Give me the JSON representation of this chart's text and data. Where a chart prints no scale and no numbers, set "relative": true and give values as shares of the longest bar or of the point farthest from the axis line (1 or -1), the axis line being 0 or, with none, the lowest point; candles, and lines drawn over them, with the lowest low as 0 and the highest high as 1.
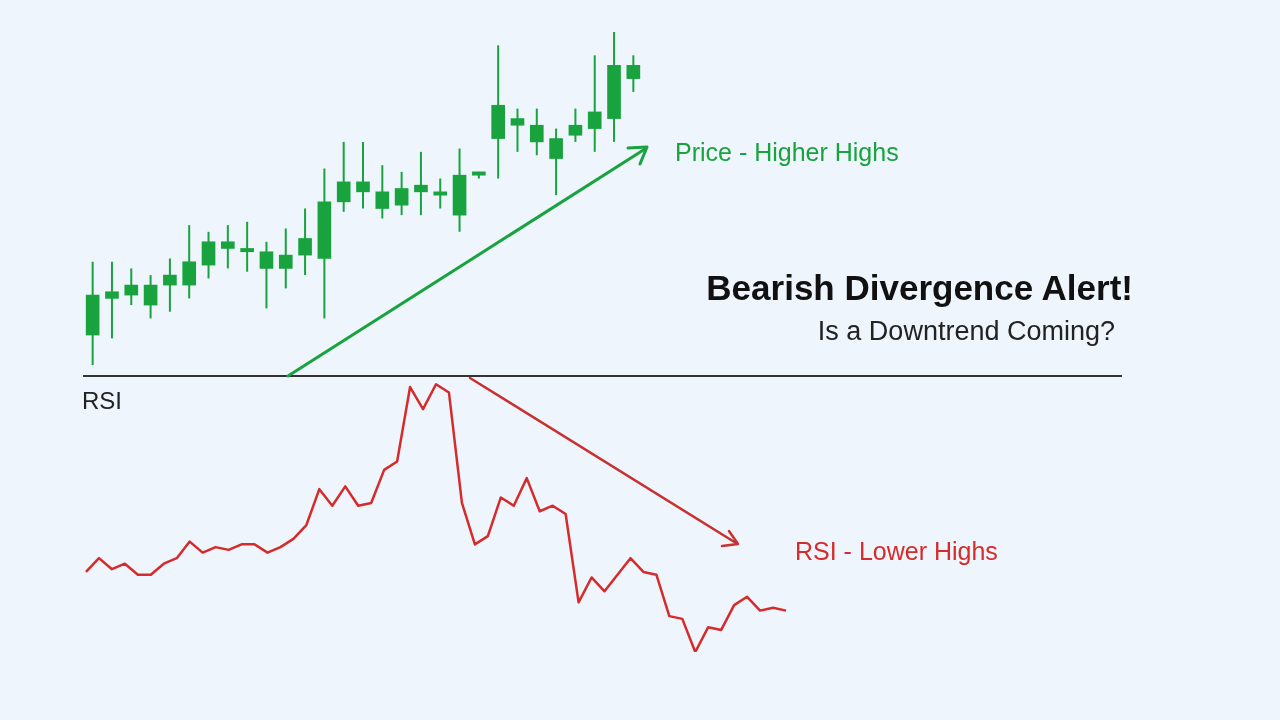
{
  "chart_data": [
    {
      "type": "candlestick",
      "relative": true,
      "annotations": [
        "Price - Higher Highs"
      ],
      "color": "#18a33e",
      "categories": [
        null,
        null,
        null,
        null,
        null,
        null,
        null,
        null,
        null,
        null,
        null,
        null,
        null,
        null,
        null,
        null,
        null,
        null,
        null,
        null,
        null,
        null,
        null,
        null,
        null,
        null,
        null,
        null,
        null
      ],
      "ohlc": [
        [
          0.09,
          0.31,
          0,
          0.21
        ],
        [
          0.2,
          0.31,
          0.08,
          0.22
        ],
        [
          0.21,
          0.29,
          0.18,
          0.24
        ],
        [
          0.18,
          0.27,
          0.14,
          0.24
        ],
        [
          0.24,
          0.32,
          0.16,
          0.27
        ],
        [
          0.24,
          0.42,
          0.2,
          0.31
        ],
        [
          0.3,
          0.4,
          0.26,
          0.37
        ],
        [
          0.35,
          0.42,
          0.29,
          0.37
        ],
        [
          0.34,
          0.43,
          0.28,
          0.35
        ],
        [
          0.29,
          0.37,
          0.17,
          0.34
        ],
        [
          0.29,
          0.41,
          0.23,
          0.33
        ],
        [
          0.33,
          0.47,
          0.27,
          0.38
        ],
        [
          0.32,
          0.59,
          0.14,
          0.49
        ],
        [
          0.49,
          0.67,
          0.46,
          0.55
        ],
        [
          0.52,
          0.67,
          0.47,
          0.55
        ],
        [
          0.47,
          0.6,
          0.44,
          0.52
        ],
        [
          0.48,
          0.58,
          0.45,
          0.53
        ],
        [
          0.52,
          0.64,
          0.45,
          0.54
        ],
        [
          0.51,
          0.56,
          0.47,
          0.52
        ],
        [
          0.45,
          0.65,
          0.4,
          0.57
        ],
        [
          0.57,
          0.58,
          0.56,
          0.58
        ],
        [
          0.68,
          0.96,
          0.56,
          0.78
        ],
        [
          0.72,
          0.77,
          0.64,
          0.74
        ],
        [
          0.67,
          0.77,
          0.63,
          0.72
        ],
        [
          0.62,
          0.71,
          0.51,
          0.68
        ],
        [
          0.69,
          0.77,
          0.67,
          0.72
        ],
        [
          0.71,
          0.93,
          0.64,
          0.76
        ],
        [
          0.74,
          1,
          0.67,
          0.9
        ],
        [
          0.86,
          0.93,
          0.82,
          0.9
        ]
      ]
    },
    {
      "type": "line",
      "relative": true,
      "title": "RSI",
      "annotations": [
        "RSI - Lower Highs"
      ],
      "color": "#d62b2b",
      "categories": [
        null,
        null,
        null,
        null,
        null,
        null,
        null,
        null,
        null,
        null,
        null,
        null,
        null,
        null,
        null,
        null,
        null,
        null,
        null,
        null,
        null,
        null,
        null,
        null,
        null,
        null,
        null,
        null,
        null,
        null,
        null,
        null,
        null,
        null,
        null,
        null,
        null,
        null,
        null,
        null,
        null,
        null,
        null,
        null,
        null,
        null,
        null,
        null,
        null,
        null,
        null,
        null,
        null,
        null,
        null
      ],
      "values": [
        -0.71,
        -0.66,
        -0.7,
        -0.68,
        -0.72,
        -0.72,
        -0.68,
        -0.66,
        -0.6,
        -0.64,
        -0.62,
        -0.63,
        -0.61,
        -0.61,
        -0.64,
        -0.62,
        -0.59,
        -0.54,
        -0.41,
        -0.47,
        -0.4,
        -0.47,
        -0.46,
        -0.34,
        -0.31,
        -0.04,
        -0.12,
        -0.03,
        -0.06,
        -0.46,
        -0.61,
        -0.58,
        -0.44,
        -0.47,
        -0.37,
        -0.49,
        -0.47,
        -0.5,
        -0.82,
        -0.73,
        -0.78,
        -0.72,
        -0.66,
        -0.71,
        -0.72,
        -0.87,
        -0.88,
        -1,
        -0.91,
        -0.92,
        -0.83,
        -0.8,
        -0.85,
        -0.84,
        -0.85
      ]
    },
    {
      "type": "other",
      "title": "Bearish Divergence Alert!",
      "subtitle": "Is a Downtrend Coming?"
    }
  ]
}
